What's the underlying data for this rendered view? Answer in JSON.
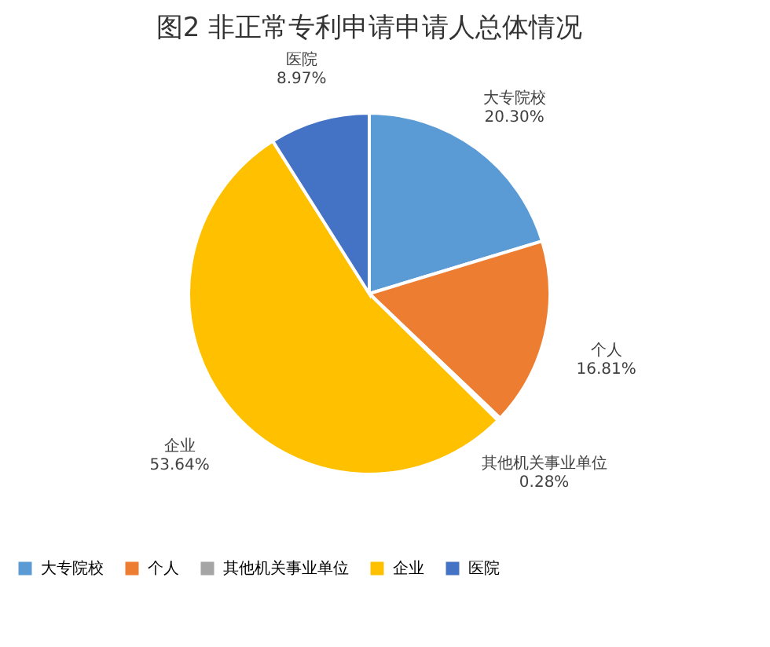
{
  "chart_data": {
    "type": "pie",
    "title": "图2 非正常专利申请申请人总体情况",
    "categories": [
      "大专院校",
      "个人",
      "其他机关事业单位",
      "企业",
      "医院"
    ],
    "values": [
      20.3,
      16.81,
      0.28,
      53.64,
      8.97
    ],
    "value_labels": [
      "20.30%",
      "16.81%",
      "0.28%",
      "53.64%",
      "8.97%"
    ],
    "colors": [
      "#5b9bd5",
      "#ed7d31",
      "#a5a5a5",
      "#ffc000",
      "#4472c4"
    ],
    "legend": "bottom"
  }
}
